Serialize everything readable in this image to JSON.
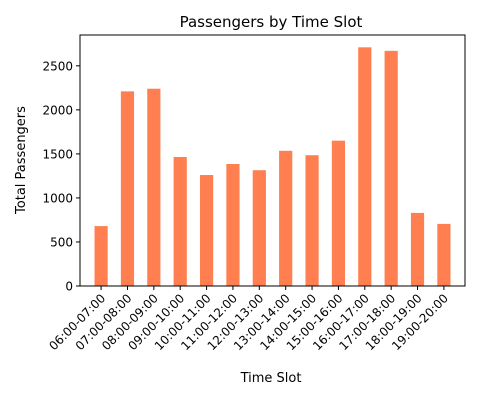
{
  "chart_data": {
    "type": "bar",
    "title": "Passengers by Time Slot",
    "xlabel": "Time Slot",
    "ylabel": "Total Passengers",
    "categories": [
      "06:00-07:00",
      "07:00-08:00",
      "08:00-09:00",
      "09:00-10:00",
      "10:00-11:00",
      "11:00-12:00",
      "12:00-13:00",
      "13:00-14:00",
      "14:00-15:00",
      "15:00-16:00",
      "16:00-17:00",
      "17:00-18:00",
      "18:00-19:00",
      "19:00-20:00"
    ],
    "values": [
      680,
      2210,
      2240,
      1465,
      1260,
      1385,
      1315,
      1535,
      1485,
      1650,
      2710,
      2670,
      830,
      705
    ],
    "ylim": [
      0,
      2850
    ],
    "yticks": [
      0,
      500,
      1000,
      1500,
      2000,
      2500
    ],
    "bar_color": "#ff7f50",
    "grid": false,
    "legend": "none"
  }
}
